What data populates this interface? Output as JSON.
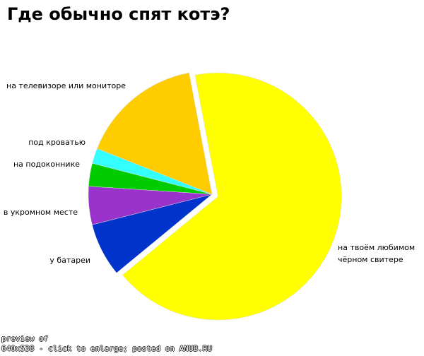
{
  "chart_data": {
    "type": "pie",
    "title": "Где обычно спят котэ?",
    "categories": [
      "на твоём любимом чёрном свитере",
      "у батареи",
      "в укромном месте",
      "на подоконнике",
      "под кроватью",
      "на телевизоре или мониторе"
    ],
    "values": [
      67,
      7,
      5,
      3,
      2,
      16
    ],
    "colors": [
      "#ffff00",
      "#0033cc",
      "#9933cc",
      "#00cc00",
      "#33ffff",
      "#ffcc00"
    ]
  },
  "footer": {
    "line1": "preview of",
    "line2": "640x538 - click to enlarge; posted on ANUB.RU"
  }
}
